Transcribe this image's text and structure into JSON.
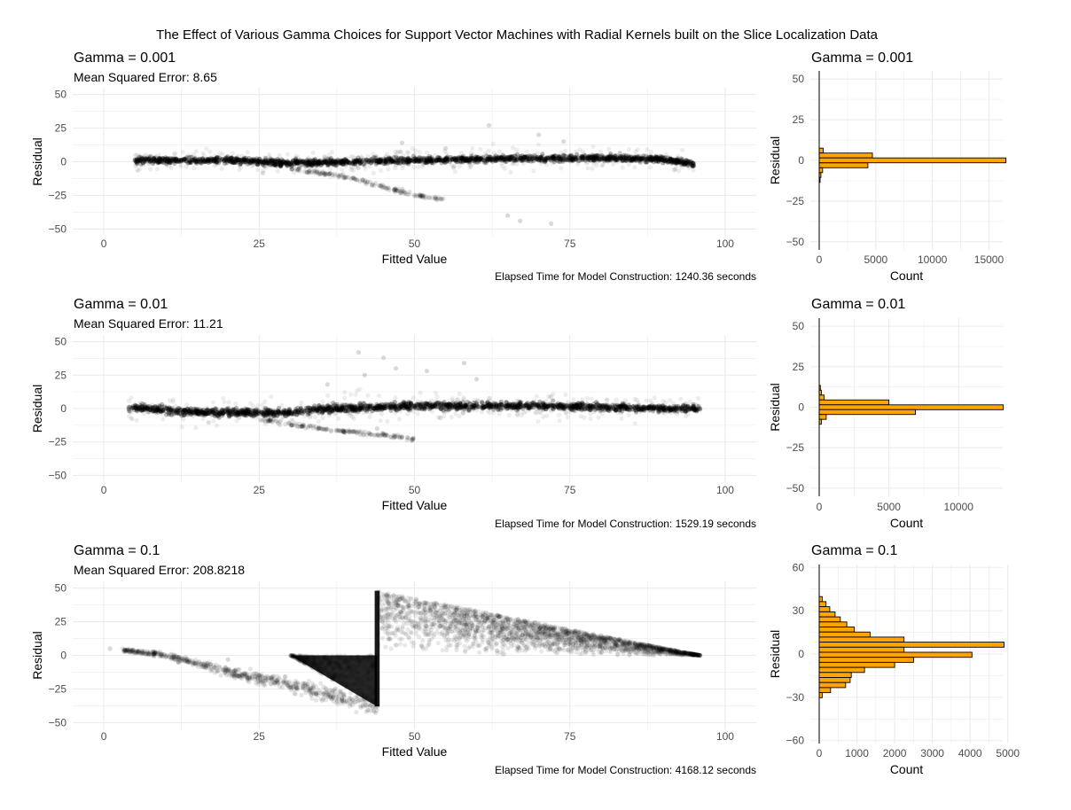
{
  "title": "The Effect of Various Gamma Choices for Support Vector Machines with Radial Kernels built on the Slice Localization Data",
  "colors": {
    "grid": "#ebebeb",
    "points": "#000000",
    "bar_fill": "#ffa500",
    "bar_stroke": "#000000"
  },
  "chart_data": [
    {
      "type": "scatter",
      "title": "Gamma = 0.001",
      "subtitle": "Mean Squared Error: 8.65",
      "xlabel": "Fitted Value",
      "ylabel": "Residual",
      "caption": "Elapsed Time for Model Construction: 1240.36 seconds",
      "xlim": [
        -5,
        105
      ],
      "ylim": [
        -55,
        55
      ],
      "xticks": [
        0,
        25,
        50,
        75,
        100
      ],
      "yticks": [
        -50,
        -25,
        0,
        25,
        50
      ],
      "band": [
        [
          5,
          1
        ],
        [
          20,
          1
        ],
        [
          30,
          -1
        ],
        [
          40,
          0
        ],
        [
          60,
          2
        ],
        [
          80,
          3
        ],
        [
          90,
          2
        ],
        [
          95,
          -2
        ]
      ],
      "band_width": 5,
      "tail": [
        [
          30,
          -5
        ],
        [
          40,
          -12
        ],
        [
          50,
          -25
        ],
        [
          55,
          -28
        ]
      ],
      "outliers": [
        [
          62,
          27
        ],
        [
          70,
          20
        ],
        [
          74,
          15
        ],
        [
          65,
          -40
        ],
        [
          72,
          -46
        ],
        [
          67,
          -44
        ],
        [
          55,
          10
        ],
        [
          48,
          14
        ]
      ]
    },
    {
      "type": "scatter",
      "title": "Gamma = 0.01",
      "subtitle": "Mean Squared Error: 11.21",
      "xlabel": "Fitted Value",
      "ylabel": "Residual",
      "caption": "Elapsed Time for Model Construction: 1529.19 seconds",
      "xlim": [
        -5,
        105
      ],
      "ylim": [
        -55,
        55
      ],
      "xticks": [
        0,
        25,
        50,
        75,
        100
      ],
      "yticks": [
        -50,
        -25,
        0,
        25,
        50
      ],
      "band": [
        [
          4,
          1
        ],
        [
          15,
          -3
        ],
        [
          30,
          -3
        ],
        [
          36,
          0
        ],
        [
          50,
          2
        ],
        [
          70,
          2
        ],
        [
          90,
          0
        ],
        [
          96,
          0
        ]
      ],
      "band_width": 6,
      "tail": [
        [
          25,
          -8
        ],
        [
          35,
          -15
        ],
        [
          45,
          -20
        ],
        [
          50,
          -23
        ]
      ],
      "outliers": [
        [
          41,
          42
        ],
        [
          45,
          38
        ],
        [
          47,
          30
        ],
        [
          52,
          28
        ],
        [
          60,
          22
        ],
        [
          44,
          -15
        ],
        [
          49,
          -22
        ],
        [
          36,
          18
        ],
        [
          58,
          34
        ],
        [
          42,
          25
        ]
      ]
    },
    {
      "type": "scatter",
      "title": "Gamma = 0.1",
      "subtitle": "Mean Squared Error: 208.8218",
      "xlabel": "Fitted Value",
      "ylabel": "Residual",
      "caption": "Elapsed Time for Model Construction: 4168.12 seconds",
      "xlim": [
        -5,
        105
      ],
      "ylim": [
        -55,
        55
      ],
      "xticks": [
        0,
        25,
        50,
        75,
        100
      ],
      "yticks": [
        -50,
        -25,
        0,
        25,
        50
      ],
      "left_line": [
        [
          3,
          4
        ],
        [
          10,
          0
        ],
        [
          20,
          -12
        ],
        [
          30,
          -22
        ],
        [
          44,
          -38
        ]
      ],
      "lower_wedge": [
        [
          30,
          0
        ],
        [
          44,
          0
        ],
        [
          44,
          -38
        ]
      ],
      "upper_wedge": [
        [
          44,
          0
        ],
        [
          44,
          48
        ],
        [
          96,
          0
        ]
      ],
      "outliers": [
        [
          1,
          5
        ],
        [
          5,
          2
        ],
        [
          8,
          1
        ],
        [
          12,
          -5
        ],
        [
          20,
          -3
        ],
        [
          25,
          -15
        ],
        [
          28,
          -20
        ]
      ]
    }
  ],
  "histograms": [
    {
      "type": "bar",
      "orientation": "horizontal",
      "title": "Gamma = 0.001",
      "xlabel": "Count",
      "ylabel": "Residual",
      "xlim": [
        0,
        17000
      ],
      "ylim": [
        -55,
        55
      ],
      "xticks": [
        0,
        5000,
        10000,
        15000
      ],
      "yticks": [
        -50,
        -25,
        0,
        25,
        50
      ],
      "bin_width": 3,
      "bins": [
        {
          "center": 6,
          "count": 350
        },
        {
          "center": 3,
          "count": 4700
        },
        {
          "center": 0,
          "count": 16500
        },
        {
          "center": -3,
          "count": 4300
        },
        {
          "center": -6,
          "count": 300
        },
        {
          "center": -9,
          "count": 150
        },
        {
          "center": -12,
          "count": 80
        }
      ]
    },
    {
      "type": "bar",
      "orientation": "horizontal",
      "title": "Gamma = 0.01",
      "xlabel": "Count",
      "ylabel": "Residual",
      "xlim": [
        0,
        13800
      ],
      "ylim": [
        -55,
        55
      ],
      "xticks": [
        0,
        5000,
        10000
      ],
      "yticks": [
        -50,
        -25,
        0,
        25,
        50
      ],
      "bin_width": 3,
      "bins": [
        {
          "center": 12,
          "count": 80
        },
        {
          "center": 9,
          "count": 150
        },
        {
          "center": 6,
          "count": 350
        },
        {
          "center": 3,
          "count": 5000
        },
        {
          "center": 0,
          "count": 13200
        },
        {
          "center": -3,
          "count": 6900
        },
        {
          "center": -6,
          "count": 500
        },
        {
          "center": -9,
          "count": 150
        }
      ]
    },
    {
      "type": "bar",
      "orientation": "horizontal",
      "title": "Gamma = 0.1",
      "xlabel": "Count",
      "ylabel": "Residual",
      "xlim": [
        0,
        5100
      ],
      "ylim": [
        -62,
        62
      ],
      "xticks": [
        0,
        1000,
        2000,
        3000,
        4000,
        5000
      ],
      "yticks": [
        -60,
        -30,
        0,
        30,
        60
      ],
      "bin_width": 3.5,
      "bins": [
        {
          "center": 38,
          "count": 80
        },
        {
          "center": 34.5,
          "count": 180
        },
        {
          "center": 31,
          "count": 280
        },
        {
          "center": 27.5,
          "count": 420
        },
        {
          "center": 24,
          "count": 560
        },
        {
          "center": 20.5,
          "count": 730
        },
        {
          "center": 17,
          "count": 930
        },
        {
          "center": 13.5,
          "count": 1350
        },
        {
          "center": 10,
          "count": 2250
        },
        {
          "center": 6.5,
          "count": 4900
        },
        {
          "center": 3,
          "count": 2250
        },
        {
          "center": -0.5,
          "count": 4050
        },
        {
          "center": -4,
          "count": 2500
        },
        {
          "center": -7.5,
          "count": 2000
        },
        {
          "center": -11,
          "count": 1200
        },
        {
          "center": -14.5,
          "count": 850
        },
        {
          "center": -18,
          "count": 820
        },
        {
          "center": -21.5,
          "count": 700
        },
        {
          "center": -25,
          "count": 300
        },
        {
          "center": -28.5,
          "count": 80
        }
      ]
    }
  ]
}
